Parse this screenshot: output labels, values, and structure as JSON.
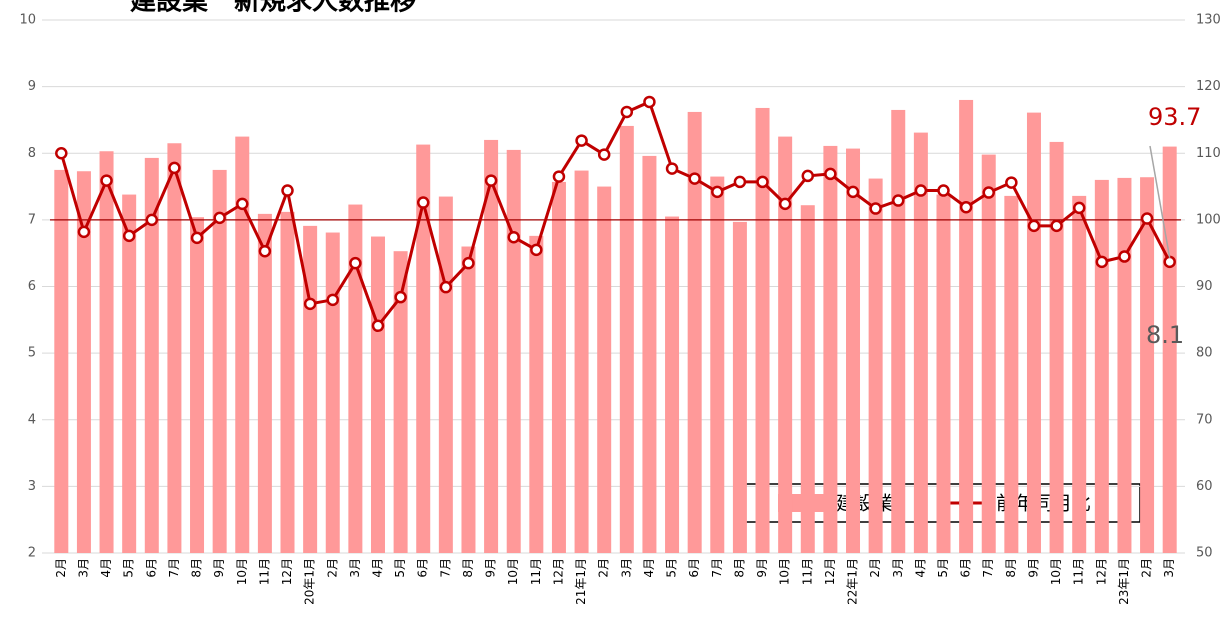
{
  "chart_data": {
    "type": "bar_line",
    "title": "建設業　新規求人数推移",
    "categories": [
      "2月",
      "3月",
      "4月",
      "5月",
      "6月",
      "7月",
      "8月",
      "9月",
      "10月",
      "11月",
      "12月",
      "20年1月",
      "2月",
      "3月",
      "4月",
      "5月",
      "6月",
      "7月",
      "8月",
      "9月",
      "10月",
      "11月",
      "12月",
      "21年1月",
      "2月",
      "3月",
      "4月",
      "5月",
      "6月",
      "7月",
      "8月",
      "9月",
      "10月",
      "11月",
      "12月",
      "22年1月",
      "2月",
      "3月",
      "4月",
      "5月",
      "6月",
      "7月",
      "8月",
      "9月",
      "10月",
      "11月",
      "12月",
      "23年1月",
      "2月",
      "3月"
    ],
    "series": [
      {
        "name": "建設業",
        "color": "#ff9999",
        "kind": "bar",
        "values": [
          7.75,
          7.73,
          8.03,
          7.38,
          7.93,
          8.15,
          7.04,
          7.75,
          8.25,
          7.09,
          7.12,
          6.91,
          6.81,
          7.23,
          6.75,
          6.53,
          8.13,
          7.35,
          6.6,
          8.2,
          8.05,
          6.76,
          7.57,
          7.74,
          7.5,
          8.41,
          7.96,
          7.05,
          8.62,
          7.65,
          6.97,
          8.68,
          8.25,
          7.22,
          8.11,
          8.07,
          7.62,
          8.65,
          8.31,
          7.38,
          8.8,
          7.98,
          7.36,
          8.61,
          8.17,
          7.36,
          7.6,
          7.63,
          7.64,
          8.1
        ]
      },
      {
        "name": "前年同月比",
        "color": "#c00000",
        "kind": "line",
        "axis": "y2",
        "values": [
          110,
          98.2,
          105.9,
          97.6,
          100,
          107.8,
          97.3,
          100.3,
          102.4,
          95.3,
          104.4,
          87.4,
          88,
          93.5,
          84.1,
          88.4,
          102.6,
          89.9,
          93.5,
          105.9,
          97.4,
          95.5,
          106.5,
          111.9,
          109.8,
          116.2,
          117.7,
          107.7,
          106.2,
          104.2,
          105.7,
          105.7,
          102.4,
          106.6,
          106.9,
          104.2,
          101.7,
          102.9,
          104.4,
          104.4,
          101.9,
          104.1,
          105.6,
          99.1,
          99.1,
          101.8,
          93.7,
          94.5,
          100.2,
          93.7
        ]
      }
    ],
    "ylim": [
      2,
      10
    ],
    "yticks": [
      2,
      3,
      4,
      5,
      6,
      7,
      8,
      9,
      10
    ],
    "y2lim": [
      50,
      130
    ],
    "y2ticks": [
      50,
      60,
      70,
      80,
      90,
      100,
      110,
      120,
      130
    ],
    "reference_y2": 100,
    "grid": true,
    "legend": "lower right",
    "annotations": [
      "93.7",
      "8.1"
    ]
  }
}
